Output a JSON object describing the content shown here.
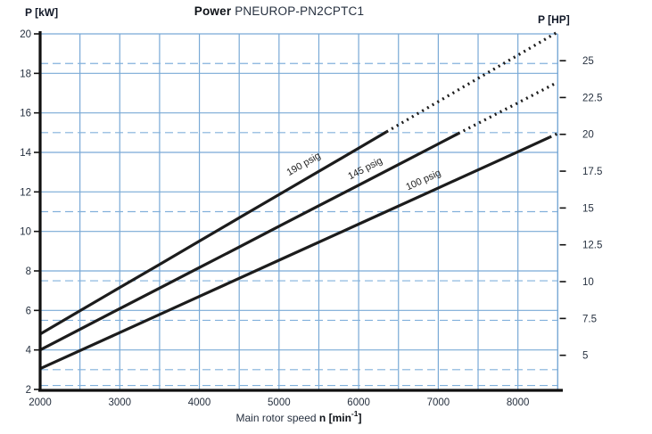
{
  "title": {
    "bold": "Power",
    "rest": " PNEUROP-PN2CPTC1"
  },
  "axes": {
    "left_title": "P [kW]",
    "right_title": "P [HP]",
    "x_title_prefix": "Main rotor speed ",
    "x_title_bold": "n [min",
    "x_title_sup": "-1",
    "x_title_close": "]"
  },
  "chart_data": {
    "type": "line",
    "title": "Power PNEUROP-PN2CPTC1",
    "xlabel": "Main rotor speed n [min^-1]",
    "ylabel_left": "P [kW]",
    "ylabel_right": "P [HP]",
    "grid": true,
    "x_axis": {
      "min": 2000,
      "max": 8500,
      "grid_step": 500,
      "tick_labels": [
        2000,
        3000,
        4000,
        5000,
        6000,
        7000,
        8000
      ]
    },
    "y_left_axis": {
      "min": 2,
      "max": 20,
      "grid_step": 2,
      "unit": "kW",
      "tick_labels": [
        20,
        18,
        16,
        14,
        12,
        10,
        8,
        6,
        4,
        2
      ]
    },
    "y_right_axis": {
      "unit": "HP",
      "kw_per_hp": 0.7457,
      "tick_labels": [
        25,
        22.5,
        20,
        17.5,
        15,
        12.5,
        10,
        7.5,
        5
      ]
    },
    "dashed_kw_gridlines": [
      2.2,
      3,
      5.5,
      7.5,
      11,
      15,
      18.5
    ],
    "series": [
      {
        "name": "190 psig",
        "solid": [
          [
            2000,
            4.8
          ],
          [
            2500,
            5.98
          ],
          [
            3000,
            7.16
          ],
          [
            3500,
            8.33
          ],
          [
            4000,
            9.51
          ],
          [
            4500,
            10.69
          ],
          [
            5000,
            11.86
          ],
          [
            5500,
            13.04
          ],
          [
            6000,
            14.21
          ],
          [
            6350,
            15.04
          ]
        ],
        "dotted": [
          [
            6350,
            15.04
          ],
          [
            7000,
            16.57
          ],
          [
            7500,
            17.75
          ],
          [
            8000,
            18.92
          ],
          [
            8480,
            20.05
          ]
        ],
        "label": {
          "text": "190 psig",
          "x": 342,
          "y": 187,
          "angle": -30
        }
      },
      {
        "name": "145 psig",
        "solid": [
          [
            2000,
            4.0
          ],
          [
            2500,
            5.04
          ],
          [
            3000,
            6.09
          ],
          [
            3500,
            7.13
          ],
          [
            4000,
            8.17
          ],
          [
            4500,
            9.21
          ],
          [
            5000,
            10.26
          ],
          [
            5500,
            11.3
          ],
          [
            6000,
            12.34
          ],
          [
            6500,
            13.38
          ],
          [
            7000,
            14.43
          ],
          [
            7250,
            14.95
          ]
        ],
        "dotted": [
          [
            7250,
            14.95
          ],
          [
            8000,
            16.51
          ],
          [
            8470,
            17.49
          ]
        ],
        "label": {
          "text": "145 psig",
          "x": 411,
          "y": 192,
          "angle": -27.5
        }
      },
      {
        "name": "100 psig",
        "solid": [
          [
            2000,
            3.05
          ],
          [
            3000,
            4.88
          ],
          [
            4000,
            6.71
          ],
          [
            5000,
            8.54
          ],
          [
            6000,
            10.37
          ],
          [
            7000,
            12.2
          ],
          [
            8000,
            14.03
          ],
          [
            8400,
            14.77
          ]
        ],
        "dotted": [
          [
            8400,
            14.77
          ],
          [
            8500,
            14.95
          ]
        ],
        "label": {
          "text": "100 psig",
          "x": 476,
          "y": 205,
          "angle": -24.5
        }
      }
    ],
    "colors": {
      "grid": "#79a9d6",
      "dashed_grid": "#82b1dc",
      "curve": "#1c1c1c",
      "axis": "#111111",
      "text": "#26303f"
    }
  }
}
